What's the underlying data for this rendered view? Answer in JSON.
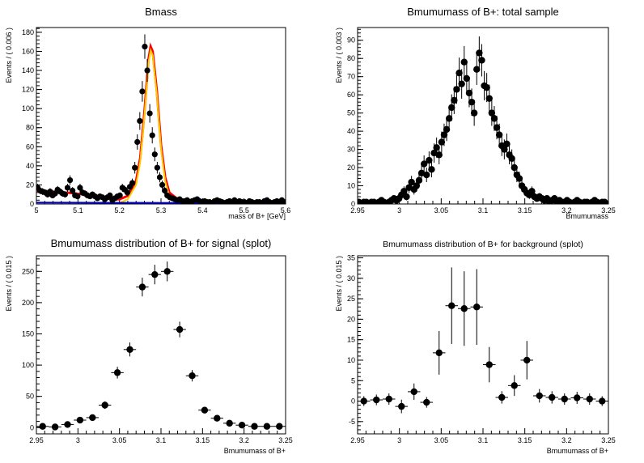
{
  "chart_data": [
    {
      "type": "scatter",
      "title": "Bmass",
      "xlabel": "mass of B+ [GeV]",
      "ylabel": "Events / ( 0.006 )",
      "xlim": [
        5.0,
        5.6
      ],
      "ylim": [
        0,
        185
      ],
      "xticks": [
        5,
        5.1,
        5.2,
        5.3,
        5.4,
        5.5,
        5.6
      ],
      "yticks": [
        0,
        20,
        40,
        60,
        80,
        100,
        120,
        140,
        160,
        180
      ],
      "grid": false,
      "series": [
        {
          "name": "",
          "style": "points-with-errors",
          "color": "#000000",
          "x": [
            5.003,
            5.009,
            5.015,
            5.021,
            5.027,
            5.033,
            5.039,
            5.045,
            5.051,
            5.057,
            5.063,
            5.069,
            5.075,
            5.081,
            5.087,
            5.093,
            5.099,
            5.105,
            5.111,
            5.117,
            5.123,
            5.129,
            5.135,
            5.141,
            5.147,
            5.153,
            5.159,
            5.165,
            5.171,
            5.177,
            5.183,
            5.189,
            5.195,
            5.201,
            5.207,
            5.213,
            5.219,
            5.225,
            5.231,
            5.237,
            5.243,
            5.249,
            5.255,
            5.261,
            5.267,
            5.273,
            5.279,
            5.285,
            5.291,
            5.297,
            5.303,
            5.309,
            5.315,
            5.321,
            5.327,
            5.333,
            5.339,
            5.345,
            5.351,
            5.357,
            5.363,
            5.369,
            5.375,
            5.381,
            5.387,
            5.393,
            5.399,
            5.405,
            5.411,
            5.417,
            5.423,
            5.429,
            5.435,
            5.441,
            5.447,
            5.453,
            5.459,
            5.465,
            5.471,
            5.477,
            5.483,
            5.489,
            5.495,
            5.501,
            5.507,
            5.513,
            5.519,
            5.525,
            5.531,
            5.537,
            5.543,
            5.549,
            5.555,
            5.561,
            5.567,
            5.573,
            5.579,
            5.585,
            5.591,
            5.597
          ],
          "y": [
            17,
            14,
            13,
            12,
            10,
            13,
            9,
            11,
            15,
            13,
            11,
            10,
            17,
            25,
            14,
            9,
            8,
            17,
            12,
            11,
            9,
            8,
            10,
            8,
            6,
            8,
            7,
            5,
            7,
            9,
            4,
            6,
            8,
            9,
            17,
            15,
            12,
            18,
            22,
            38,
            65,
            87,
            118,
            165,
            140,
            95,
            72,
            52,
            38,
            28,
            20,
            14,
            9,
            7,
            6,
            5,
            4,
            5,
            3,
            3,
            4,
            2,
            3,
            4,
            5,
            3,
            2,
            3,
            2,
            2,
            1,
            3,
            4,
            3,
            2,
            1,
            2,
            3,
            2,
            4,
            2,
            3,
            2,
            2,
            1,
            3,
            2,
            1,
            2,
            2,
            1,
            3,
            4,
            2,
            1,
            2,
            3,
            2,
            4,
            2
          ]
        },
        {
          "name": "",
          "style": "line",
          "color": "#ff0000",
          "x": [
            5.0,
            5.03,
            5.06,
            5.09,
            5.12,
            5.15,
            5.18,
            5.2,
            5.22,
            5.24,
            5.25,
            5.26,
            5.27,
            5.275,
            5.28,
            5.29,
            5.3,
            5.31,
            5.32,
            5.34,
            5.36,
            5.4,
            5.45,
            5.5,
            5.55,
            5.6
          ],
          "y": [
            14,
            13.2,
            12.3,
            11.2,
            9.6,
            7.2,
            5.0,
            4.8,
            8.5,
            24,
            48,
            96,
            152,
            165,
            160,
            118,
            62,
            28,
            12,
            5,
            3.5,
            2.8,
            2.6,
            2.4,
            2.2,
            2.1
          ]
        },
        {
          "name": "",
          "style": "line",
          "color": "#ffcc00",
          "x": [
            5.2,
            5.22,
            5.24,
            5.25,
            5.26,
            5.27,
            5.275,
            5.28,
            5.29,
            5.3,
            5.31,
            5.32,
            5.34
          ],
          "y": [
            1,
            5,
            20,
            44,
            92,
            148,
            161,
            156,
            114,
            58,
            24,
            8,
            2
          ]
        },
        {
          "name": "",
          "style": "line",
          "color": "#0000cc",
          "x": [
            5.0,
            5.1,
            5.2,
            5.3,
            5.4,
            5.5,
            5.6
          ],
          "y": [
            1.5,
            1.4,
            1.3,
            1.2,
            1.1,
            1.0,
            0.9
          ]
        }
      ]
    },
    {
      "type": "scatter",
      "title": "Bmumumass of B+: total sample",
      "xlabel": "Bmumumass",
      "ylabel": "Events / ( 0.003 )",
      "xlim": [
        2.95,
        3.25
      ],
      "ylim": [
        0,
        97
      ],
      "xticks": [
        2.95,
        3,
        3.05,
        3.1,
        3.15,
        3.2,
        3.25
      ],
      "yticks": [
        0,
        10,
        20,
        30,
        40,
        50,
        60,
        70,
        80,
        90
      ],
      "grid": false,
      "series": [
        {
          "name": "",
          "style": "points-with-errors",
          "color": "#000000",
          "x": [
            2.9515,
            2.9545,
            2.9575,
            2.9605,
            2.9635,
            2.9665,
            2.9695,
            2.9725,
            2.9755,
            2.9785,
            2.9815,
            2.9845,
            2.9875,
            2.9905,
            2.9935,
            2.9965,
            2.9995,
            3.0025,
            3.0055,
            3.0085,
            3.0115,
            3.0145,
            3.0175,
            3.0205,
            3.0235,
            3.0265,
            3.0295,
            3.0325,
            3.0355,
            3.0385,
            3.0415,
            3.0445,
            3.0475,
            3.0505,
            3.0535,
            3.0565,
            3.0595,
            3.0625,
            3.0655,
            3.0685,
            3.0715,
            3.0745,
            3.0775,
            3.0805,
            3.0835,
            3.0865,
            3.0895,
            3.0925,
            3.0955,
            3.0985,
            3.1015,
            3.1045,
            3.1075,
            3.1105,
            3.1135,
            3.1165,
            3.1195,
            3.1225,
            3.1255,
            3.1285,
            3.1315,
            3.1345,
            3.1375,
            3.1405,
            3.1435,
            3.1465,
            3.1495,
            3.1525,
            3.1555,
            3.1585,
            3.1615,
            3.1645,
            3.1675,
            3.1705,
            3.1735,
            3.1765,
            3.1795,
            3.1825,
            3.1855,
            3.1885,
            3.1915,
            3.1945,
            3.1975,
            3.2005,
            3.2035,
            3.2065,
            3.2095,
            3.2125,
            3.2155,
            3.2185,
            3.2215,
            3.2245,
            3.2275,
            3.2305,
            3.2335,
            3.2365,
            3.2395,
            3.2425,
            3.2455,
            3.2485
          ],
          "y": [
            1,
            0,
            1,
            1,
            0,
            1,
            1,
            0,
            1,
            2,
            1,
            0,
            1,
            2,
            3,
            2,
            3,
            5,
            7,
            4,
            9,
            12,
            8,
            10,
            13,
            17,
            22,
            16,
            24,
            19,
            28,
            31,
            27,
            34,
            38,
            41,
            47,
            53,
            57,
            63,
            72,
            66,
            78,
            69,
            61,
            56,
            50,
            74,
            83,
            79,
            65,
            64,
            58,
            50,
            47,
            42,
            38,
            32,
            30,
            33,
            27,
            25,
            20,
            16,
            14,
            10,
            8,
            6,
            5,
            7,
            4,
            3,
            4,
            3,
            2,
            3,
            1,
            2,
            3,
            1,
            2,
            1,
            1,
            2,
            1,
            0,
            1,
            2,
            1,
            0,
            1,
            1,
            0,
            1,
            2,
            1,
            0,
            1,
            1,
            0
          ]
        }
      ]
    },
    {
      "type": "scatter",
      "title": "Bmumumass distribution of B+ for signal (splot)",
      "xlabel": "Bmumumass of B+",
      "ylabel": "Events / ( 0.015 )",
      "xlim": [
        2.95,
        3.25
      ],
      "ylim": [
        -10,
        275
      ],
      "xticks": [
        2.95,
        3,
        3.05,
        3.1,
        3.15,
        3.2,
        3.25
      ],
      "yticks": [
        0,
        50,
        100,
        150,
        200,
        250
      ],
      "grid": false,
      "series": [
        {
          "name": "",
          "style": "points-with-errors",
          "color": "#000000",
          "x": [
            2.9575,
            2.9725,
            2.9875,
            3.0025,
            3.0175,
            3.0325,
            3.0475,
            3.0625,
            3.0775,
            3.0925,
            3.1075,
            3.1225,
            3.1375,
            3.1525,
            3.1675,
            3.1825,
            3.1975,
            3.2125,
            3.2275,
            3.2425
          ],
          "y": [
            2,
            1,
            5,
            12,
            16,
            36,
            88,
            125,
            225,
            245,
            250,
            157,
            83,
            28,
            15,
            7,
            4,
            2,
            2,
            2
          ]
        }
      ]
    },
    {
      "type": "scatter",
      "title": "Bmumumass distribution of B+ for background (splot)",
      "xlabel": "Bmumumass of B+",
      "ylabel": "Events / ( 0.015 )",
      "xlim": [
        2.95,
        3.25
      ],
      "ylim": [
        -8,
        35.5
      ],
      "xticks": [
        2.95,
        3,
        3.05,
        3.1,
        3.15,
        3.2,
        3.25
      ],
      "yticks": [
        -5,
        0,
        5,
        10,
        15,
        20,
        25,
        30,
        35
      ],
      "grid": false,
      "series": [
        {
          "name": "",
          "style": "points-with-errors",
          "color": "#000000",
          "x": [
            2.9575,
            2.9725,
            2.9875,
            3.0025,
            3.0175,
            3.0325,
            3.0475,
            3.0625,
            3.0775,
            3.0925,
            3.1075,
            3.1225,
            3.1375,
            3.1525,
            3.1675,
            3.1825,
            3.1975,
            3.2125,
            3.2275,
            3.2425
          ],
          "y": [
            0,
            0.3,
            0.5,
            -1.3,
            2.3,
            -0.3,
            11.8,
            23.3,
            22.6,
            23,
            8.9,
            0.9,
            3.8,
            10,
            1.3,
            0.9,
            0.5,
            0.8,
            0.5,
            0
          ]
        }
      ]
    }
  ]
}
